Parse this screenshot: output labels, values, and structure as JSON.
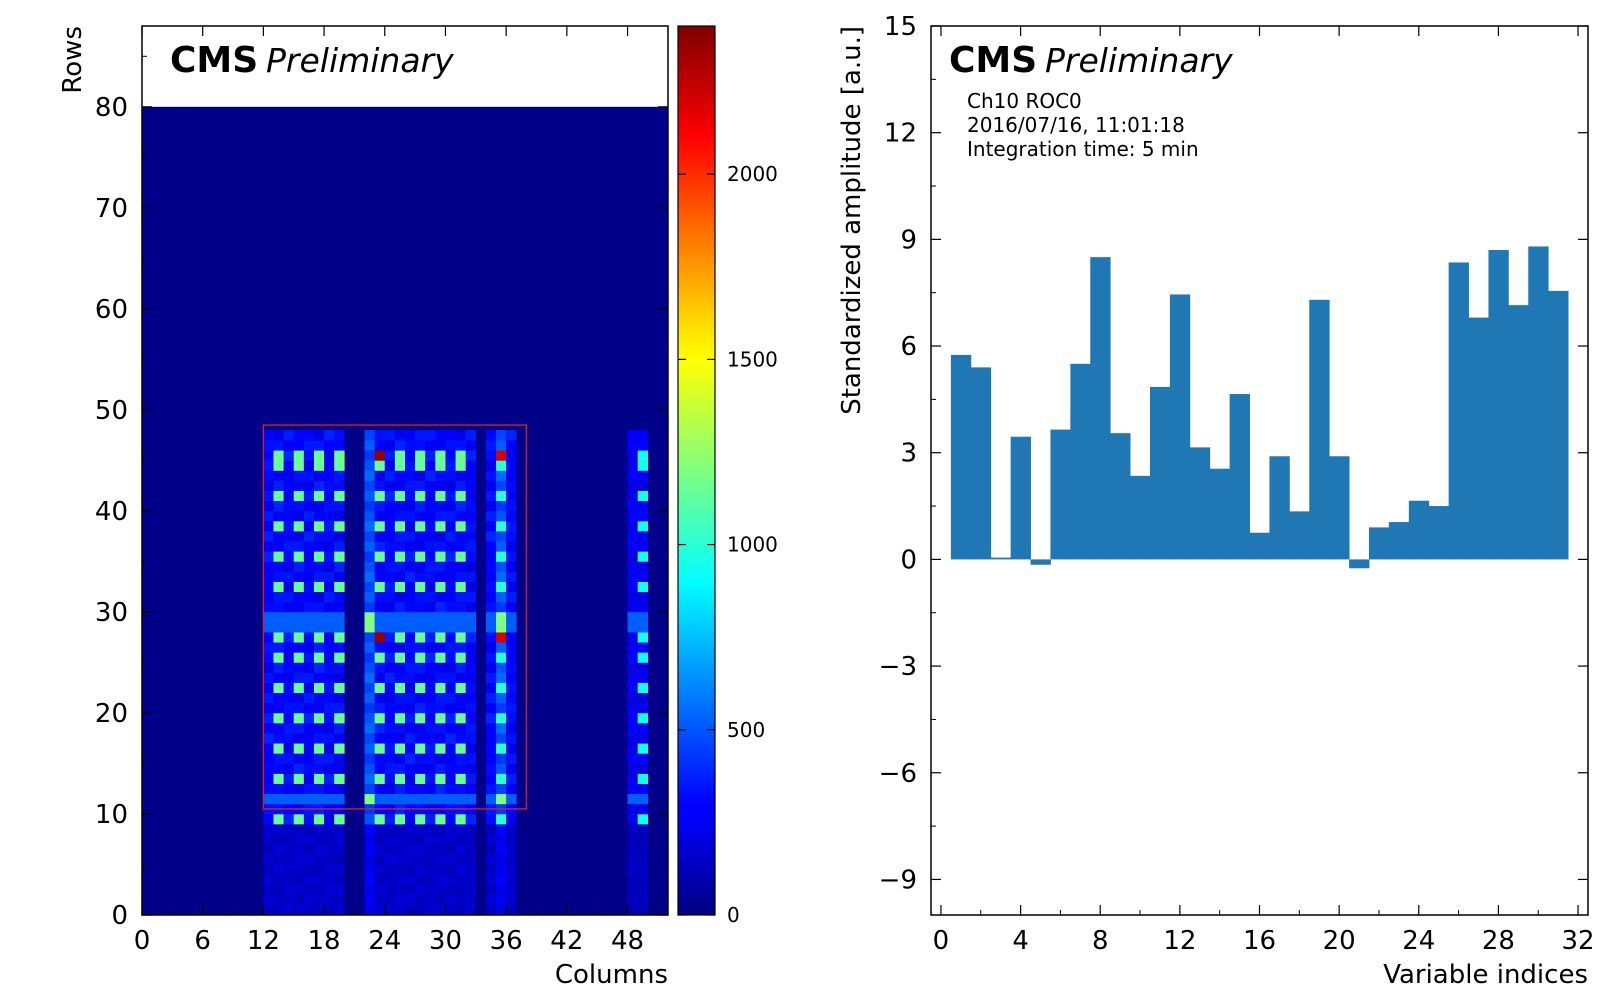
{
  "chart_data": [
    {
      "type": "heatmap",
      "title": "CMS",
      "subtitle": "Preliminary",
      "xlabel": "Columns",
      "ylabel": "Rows",
      "xlim": [
        0,
        52
      ],
      "ylim": [
        0,
        88
      ],
      "grid": false,
      "xticks": [
        "0",
        "6",
        "12",
        "18",
        "24",
        "30",
        "36",
        "42",
        "48"
      ],
      "yticks": [
        "0",
        "10",
        "20",
        "30",
        "40",
        "50",
        "60",
        "70",
        "80"
      ],
      "colorbar": {
        "min": 0,
        "max": 2400,
        "ticks": [
          "0",
          "500",
          "1000",
          "1500",
          "2000"
        ],
        "colormap": "jet"
      },
      "pixel_matrix": {
        "columns": 52,
        "rows": 80,
        "background_value": 20
      },
      "active_columns": [
        12,
        13,
        14,
        15,
        16,
        17,
        18,
        19,
        22,
        23,
        24,
        25,
        26,
        27,
        28,
        29,
        30,
        31,
        32,
        34,
        35,
        36,
        48,
        49
      ],
      "bright_columns": [
        22,
        35
      ],
      "active_rows_max": 47,
      "hot_pixel_rows": [
        9,
        13,
        16,
        19,
        22,
        25,
        27,
        32,
        35,
        38,
        41,
        44,
        45
      ],
      "peak_rows": [
        27,
        45
      ],
      "band_rows": [
        11,
        28,
        29
      ],
      "roi_box": {
        "col_range": [
          12,
          38
        ],
        "row_range": [
          10.5,
          48.5
        ],
        "color": "#e02020"
      }
    },
    {
      "type": "bar",
      "title": "CMS",
      "subtitle": "Preliminary",
      "annotations": [
        "Ch10 ROC0",
        "2016/07/16, 11:01:18",
        "Integration time: 5 min"
      ],
      "xlabel": "Variable indices",
      "ylabel": "Standardized amplitude [a.u.]",
      "xlim": [
        -0.5,
        32.5
      ],
      "ylim": [
        -10,
        15
      ],
      "grid": false,
      "xticks": [
        "0",
        "4",
        "8",
        "12",
        "16",
        "20",
        "24",
        "28",
        "32"
      ],
      "yticks": [
        "−9",
        "−6",
        "−3",
        "0",
        "3",
        "6",
        "9",
        "12",
        "15"
      ],
      "x": [
        1,
        2,
        3,
        4,
        5,
        6,
        7,
        8,
        9,
        10,
        11,
        12,
        13,
        14,
        15,
        16,
        17,
        18,
        19,
        20,
        21,
        22,
        23,
        24,
        25,
        26,
        27,
        28,
        29,
        30,
        31
      ],
      "values": [
        5.75,
        5.4,
        0.05,
        3.45,
        -0.15,
        3.65,
        5.5,
        8.5,
        3.55,
        2.35,
        4.85,
        7.45,
        3.15,
        2.55,
        4.65,
        0.75,
        2.9,
        1.35,
        7.3,
        2.9,
        -0.25,
        0.9,
        1.05,
        1.65,
        1.5,
        8.35,
        6.8,
        8.7,
        7.15,
        8.8,
        7.55
      ],
      "bar_color": "#1f77b4"
    }
  ]
}
